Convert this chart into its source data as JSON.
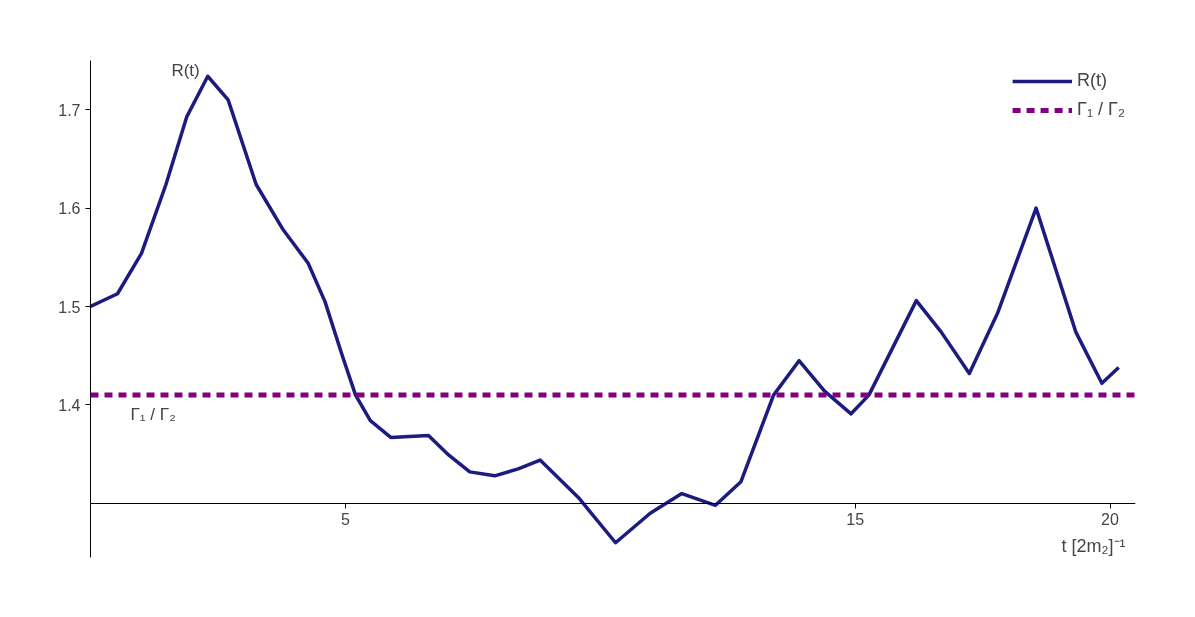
{
  "chart_data": {
    "type": "line",
    "xlabel": "t   [2m₂]⁻¹",
    "x": [
      0,
      0.53,
      1.0,
      1.48,
      1.89,
      2.3,
      2.7,
      3.25,
      3.78,
      4.27,
      4.6,
      4.94,
      5.2,
      5.49,
      5.89,
      6.63,
      7.03,
      7.44,
      7.93,
      8.39,
      8.82,
      9.57,
      10.3,
      10.98,
      11.6,
      12.26,
      12.76,
      13.4,
      13.9,
      14.4,
      14.92,
      15.27,
      16.2,
      16.69,
      17.24,
      17.8,
      18.55,
      19.33,
      19.84,
      20.17
    ],
    "series": [
      {
        "name": "R(t)",
        "color": "#1c1c80",
        "values": [
          1.5,
          1.513,
          1.554,
          1.624,
          1.693,
          1.734,
          1.71,
          1.624,
          1.578,
          1.544,
          1.505,
          1.45,
          1.41,
          1.384,
          1.367,
          1.369,
          1.349,
          1.332,
          1.328,
          1.335,
          1.344,
          1.306,
          1.26,
          1.29,
          1.31,
          1.298,
          1.322,
          1.41,
          1.445,
          1.414,
          1.391,
          1.41,
          1.506,
          1.474,
          1.432,
          1.494,
          1.6,
          1.474,
          1.422,
          1.438
        ]
      }
    ],
    "ref_lines": [
      {
        "axis": "y",
        "value": 1.41,
        "label": "Γ₁ / Γ₂",
        "color": "#800080",
        "line_style": "dashed"
      }
    ],
    "annotations": [
      "R(t)",
      "Γ₁ / Γ₂"
    ],
    "xlim": [
      0,
      20.5
    ],
    "ylim": [
      1.245,
      1.75
    ],
    "xticks": [
      5,
      15,
      20
    ],
    "yticks": [
      1.4,
      1.5,
      1.6,
      1.7
    ],
    "grid": false,
    "legend": "top right",
    "line_style": "solid",
    "marker": "none"
  }
}
